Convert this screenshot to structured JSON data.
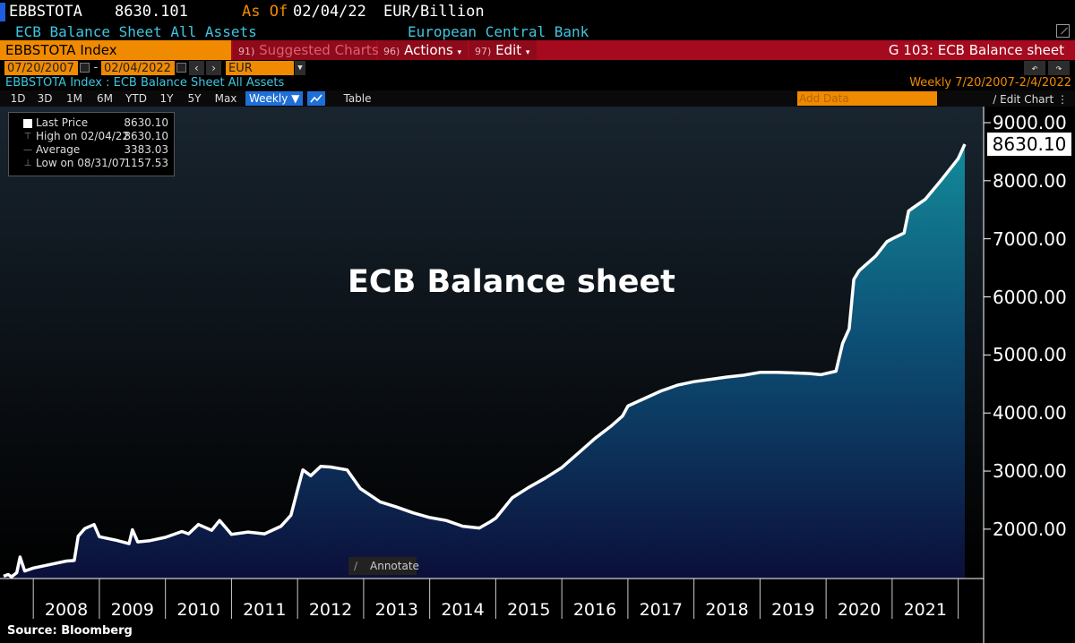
{
  "header": {
    "ticker": "EBBSTOTA",
    "value": "8630.101",
    "as_of_label": "As Of",
    "as_of_date": "02/04/22",
    "units": "EUR/Billion",
    "description": "ECB Balance Sheet All Assets",
    "source_org": "European Central Bank"
  },
  "command_bar": {
    "security": "EBBSTOTA Index",
    "suggested_num": "91)",
    "suggested_label": "Suggested Charts",
    "actions_num": "96)",
    "actions_label": "Actions",
    "edit_num": "97)",
    "edit_label": "Edit",
    "function_title": "G 103: ECB Balance sheet"
  },
  "range": {
    "start_date": "07/20/2007",
    "end_date": "02/04/2022",
    "currency": "EUR"
  },
  "subtitle": {
    "left": "EBBSTOTA Index : ECB Balance Sheet All Assets",
    "right": "Weekly   7/20/2007-2/4/2022"
  },
  "toolbar": {
    "periods": [
      "1D",
      "3D",
      "1M",
      "6M",
      "YTD",
      "1Y",
      "5Y",
      "Max"
    ],
    "frequency": "Weekly ▼",
    "table_label": "Table",
    "add_data_placeholder": "Add Data",
    "edit_chart_label": "Edit Chart"
  },
  "legend": {
    "last_price_label": "Last Price",
    "last_price_value": "8630.10",
    "high_label": "High on 02/04/22",
    "high_value": "8630.10",
    "average_label": "Average",
    "average_value": "3383.03",
    "low_label": "Low on 08/31/07",
    "low_value": "1157.53"
  },
  "chart_title": "ECB Balance sheet",
  "annotate_label": "Annotate",
  "source_label": "Source: Bloomberg",
  "colors": {
    "line": "#ffffff",
    "fill_top": "#138a99",
    "fill_bottom": "#0b0f3a",
    "background_top": "#18242f",
    "background_bottom": "#000000",
    "accent_orange": "#f08a00",
    "bar_red": "#a50a1f"
  },
  "chart_data": {
    "type": "area",
    "title": "ECB Balance sheet",
    "xlabel": "",
    "ylabel": "",
    "series_name": "Last Price",
    "last_value": "8630.10",
    "ylim": [
      1150,
      9200
    ],
    "yticks": [
      2000,
      3000,
      4000,
      5000,
      6000,
      7000,
      8000,
      9000
    ],
    "ytick_labels": [
      "2000.00",
      "3000.00",
      "4000.00",
      "5000.00",
      "6000.00",
      "7000.00",
      "8000.00",
      "9000.00"
    ],
    "xlim": [
      2007.55,
      2022.1
    ],
    "xticks": [
      2008,
      2009,
      2010,
      2011,
      2012,
      2013,
      2014,
      2015,
      2016,
      2017,
      2018,
      2019,
      2020,
      2021
    ],
    "xtick_labels": [
      "2008",
      "2009",
      "2010",
      "2011",
      "2012",
      "2013",
      "2014",
      "2015",
      "2016",
      "2017",
      "2018",
      "2019",
      "2020",
      "2021"
    ],
    "x": [
      2007.55,
      2007.62,
      2007.67,
      2007.75,
      2007.8,
      2007.87,
      2008.0,
      2008.25,
      2008.5,
      2008.62,
      2008.68,
      2008.78,
      2008.92,
      2009.0,
      2009.25,
      2009.45,
      2009.5,
      2009.58,
      2009.75,
      2010.0,
      2010.25,
      2010.35,
      2010.5,
      2010.7,
      2010.82,
      2011.0,
      2011.25,
      2011.5,
      2011.75,
      2011.9,
      2012.0,
      2012.08,
      2012.2,
      2012.35,
      2012.5,
      2012.75,
      2012.95,
      2013.25,
      2013.5,
      2013.75,
      2014.0,
      2014.25,
      2014.5,
      2014.75,
      2014.92,
      2015.0,
      2015.25,
      2015.5,
      2015.75,
      2016.0,
      2016.25,
      2016.5,
      2016.75,
      2016.92,
      2017.0,
      2017.25,
      2017.5,
      2017.75,
      2018.0,
      2018.25,
      2018.5,
      2018.75,
      2019.0,
      2019.25,
      2019.5,
      2019.75,
      2019.92,
      2020.15,
      2020.25,
      2020.35,
      2020.42,
      2020.5,
      2020.75,
      2020.92,
      2021.0,
      2021.18,
      2021.25,
      2021.5,
      2021.75,
      2022.0,
      2022.1
    ],
    "values": [
      1190,
      1220,
      1180,
      1250,
      1520,
      1280,
      1330,
      1390,
      1450,
      1460,
      1880,
      2010,
      2080,
      1870,
      1810,
      1750,
      1990,
      1780,
      1800,
      1860,
      1960,
      1920,
      2080,
      1980,
      2150,
      1910,
      1950,
      1920,
      2050,
      2240,
      2680,
      3020,
      2920,
      3080,
      3070,
      3020,
      2700,
      2470,
      2380,
      2280,
      2200,
      2150,
      2050,
      2020,
      2130,
      2190,
      2540,
      2720,
      2880,
      3060,
      3310,
      3560,
      3780,
      3950,
      4120,
      4250,
      4380,
      4480,
      4540,
      4580,
      4620,
      4650,
      4700,
      4700,
      4690,
      4680,
      4660,
      4720,
      5200,
      5450,
      6300,
      6450,
      6700,
      6950,
      7000,
      7100,
      7480,
      7680,
      8020,
      8380,
      8630
    ]
  }
}
